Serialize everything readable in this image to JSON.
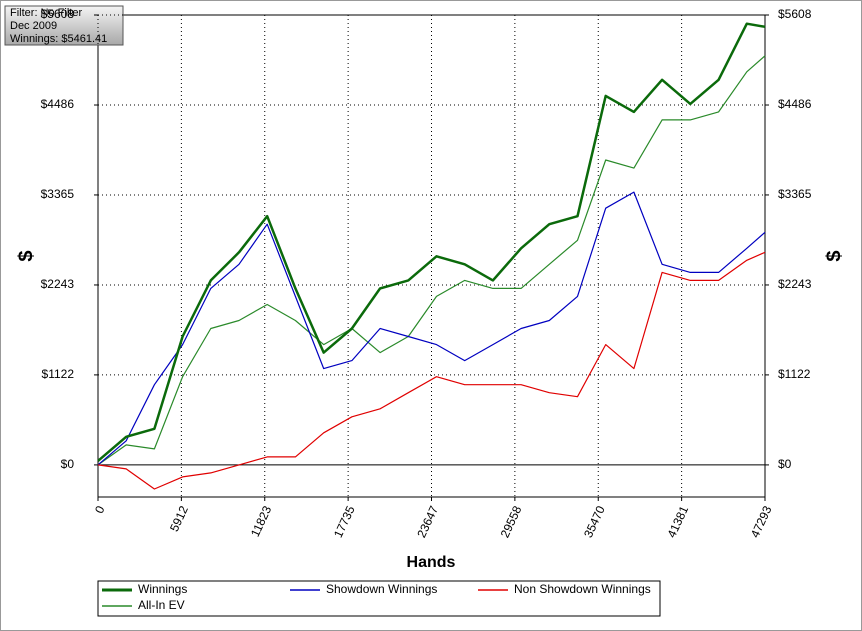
{
  "chart_data": {
    "type": "line",
    "info": [
      "Filter: No Filter",
      "Dec 2009",
      "Winnings: $5461.41"
    ],
    "ylabel": "$",
    "xlabel": "Hands",
    "x": [
      0,
      2000,
      4000,
      6000,
      8000,
      10000,
      12000,
      14000,
      16000,
      18000,
      20000,
      22000,
      24000,
      26000,
      28000,
      30000,
      32000,
      34000,
      36000,
      38000,
      40000,
      42000,
      44000,
      46000,
      47293
    ],
    "series": [
      {
        "name": "Winnings",
        "color": "#0b6a0b",
        "values": [
          50,
          350,
          450,
          1600,
          2300,
          2650,
          3100,
          2200,
          1400,
          1700,
          2200,
          2300,
          2600,
          2500,
          2300,
          2700,
          3000,
          3100,
          4600,
          4400,
          4800,
          4500,
          4800,
          5500,
          5461
        ]
      },
      {
        "name": "Showdown Winnings",
        "color": "#0000c0",
        "values": [
          0,
          300,
          1000,
          1500,
          2200,
          2500,
          3000,
          2100,
          1200,
          1300,
          1700,
          1600,
          1500,
          1300,
          1500,
          1700,
          1800,
          2100,
          3200,
          3400,
          2500,
          2400,
          2400,
          2700,
          2900
        ]
      },
      {
        "name": "Non Showdown Winnings",
        "color": "#e00000",
        "values": [
          0,
          -50,
          -300,
          -150,
          -100,
          0,
          100,
          100,
          400,
          600,
          700,
          900,
          1100,
          1000,
          1000,
          1000,
          900,
          850,
          1500,
          1200,
          2400,
          2300,
          2300,
          2550,
          2650
        ]
      },
      {
        "name": "All-In EV",
        "color": "#2a8a2a",
        "values": [
          0,
          250,
          200,
          1100,
          1700,
          1800,
          2000,
          1800,
          1500,
          1700,
          1400,
          1600,
          2100,
          2300,
          2200,
          2200,
          2500,
          2800,
          3800,
          3700,
          4300,
          4300,
          4400,
          4900,
          5100
        ]
      }
    ],
    "xlim": [
      0,
      47293
    ],
    "xticks": [
      0,
      5912,
      11823,
      17735,
      23647,
      29558,
      35470,
      41381,
      47293
    ],
    "ylim": [
      -400,
      5608
    ],
    "yticks": [
      {
        "value": 0,
        "label": "$0"
      },
      {
        "value": 1122,
        "label": "$1122"
      },
      {
        "value": 2243,
        "label": "$2243"
      },
      {
        "value": 3365,
        "label": "$3365"
      },
      {
        "value": 4486,
        "label": "$4486"
      },
      {
        "value": 5608,
        "label": "$5608"
      }
    ],
    "grid": true
  }
}
